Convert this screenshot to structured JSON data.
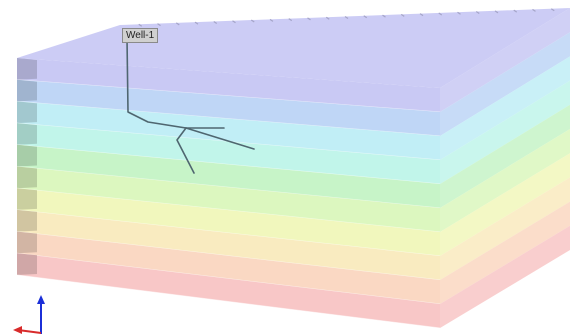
{
  "viewport": {
    "background": "#ffffff",
    "layer_colors": [
      "#c9c9f4",
      "#bfd6f6",
      "#c1eef6",
      "#c1f5ea",
      "#c7f4c8",
      "#dcf7bf",
      "#f1f7bd",
      "#f9ebc0",
      "#fad8c3",
      "#f8c7c7"
    ],
    "well_path_color": "#4f6670",
    "axis_z_color": "#1b2fd8",
    "axis_x_color": "#d82b2b"
  },
  "well": {
    "name": "Well-1"
  }
}
